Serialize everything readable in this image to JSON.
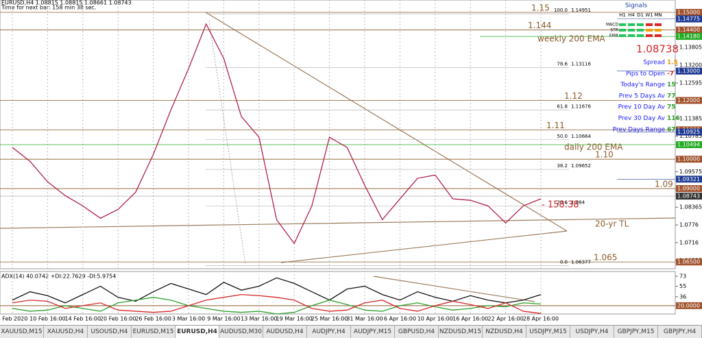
{
  "header": {
    "symbol_line": "EURUSD,H4  1.08815 1.08815 1.08661 1.08743",
    "timer": "Time for next bar: 158 min 38 sec."
  },
  "chart_data": [
    {
      "type": "line",
      "color": "#b0204a",
      "categories": [
        "4 Feb 2020",
        null,
        "10 Feb 16:00",
        null,
        "14 Feb 16:00",
        null,
        "20 Feb 16:00",
        null,
        "26 Feb 16:00",
        null,
        "3 Mar 16:00",
        null,
        "9 Mar 16:00",
        null,
        "13 Mar 16:00",
        null,
        "19 Mar 16:00",
        null,
        "25 Mar 16:00",
        null,
        "31 Mar 16:00",
        null,
        "6 Apr 16:00",
        null,
        "10 Apr 16:00",
        null,
        "16 Apr 16:00",
        null,
        "22 Apr 16:00",
        null,
        "28 Apr 16:00"
      ],
      "values": [
        1.104,
        1.0993,
        1.0923,
        1.0876,
        1.0841,
        1.0799,
        1.0829,
        1.0888,
        1.1016,
        1.1168,
        1.1308,
        1.146,
        1.1343,
        1.1145,
        1.1075,
        1.0794,
        1.0713,
        1.0841,
        1.1075,
        1.104,
        1.0911,
        1.0794,
        1.0865,
        1.0935,
        1.0946,
        1.0865,
        1.086,
        1.0841,
        1.0783,
        1.0841,
        1.0865
      ],
      "ylim": [
        1.0627,
        1.1542
      ],
      "yticks": [
        {
          "value": 1.13805,
          "label": "1.13805"
        },
        {
          "value": 1.132,
          "label": "1.13200"
        },
        {
          "value": 1.12595,
          "label": "1.12595"
        },
        {
          "value": 1.11385,
          "label": "1.11385"
        },
        {
          "value": 1.10785,
          "label": "1.10785"
        },
        {
          "value": 1.09575,
          "label": "1.09575"
        },
        1.0897,
        {
          "value": 1.08365,
          "label": "1.08365"
        },
        1.0776,
        1.0716,
        1.06555
      ],
      "levels": [
        {
          "value": 1.15,
          "label": "1.15",
          "axis_label": "1.15000"
        },
        {
          "value": 1.144,
          "label": "1.144",
          "axis_label": "1.14400"
        },
        {
          "value": 1.12,
          "label": "1.12",
          "axis_label": "1.12000"
        },
        {
          "value": 1.11,
          "label": "1.11",
          "axis_label": "1.11000"
        },
        {
          "value": 1.1,
          "label": "1.10",
          "axis_label": "1.10000"
        },
        {
          "value": 1.09,
          "label": "1.09",
          "axis_label": "1.09000"
        },
        {
          "value": 1.065,
          "label": "1.065",
          "axis_label": "1.06500"
        }
      ],
      "marked_prices": [
        {
          "value": 1.14775,
          "label": "1.14775"
        },
        {
          "value": 1.13,
          "label": "1.13000"
        },
        {
          "value": 1.10925,
          "label": "1.10925"
        },
        {
          "value": 1.09321,
          "label": "1.09321"
        }
      ],
      "emas": [
        {
          "text": "weekly 200 EMA",
          "value": 1.1418,
          "label": "1.14180"
        },
        {
          "text": "daily 200 EMA",
          "value": 1.10494,
          "label": "1.10494"
        }
      ],
      "current_price": {
        "value": 1.08743,
        "label": "1.08743"
      },
      "fibs": [
        {
          "level": "100.0",
          "price": 1.14951
        },
        {
          "level": "78.6",
          "price": 1.13116
        },
        {
          "level": "61.8",
          "price": 1.11676
        },
        {
          "level": "50.0",
          "price": 1.10664
        },
        {
          "level": "38.2",
          "price": 1.09652
        },
        {
          "level": "23.6",
          "price": 1.084
        },
        {
          "level": "0.0",
          "price": 1.06377
        }
      ],
      "annotations": {
        "countdown": "- 158:38",
        "trendline": "20-yr TL"
      }
    },
    {
      "type": "line",
      "title": "ADX(14) 40.0742 +DI:22.7629 -DI:5.9754",
      "series": [
        {
          "name": "ADX",
          "color": "#111111",
          "values": [
            30,
            45,
            38,
            25,
            40,
            55,
            35,
            28,
            45,
            60,
            50,
            40,
            62,
            48,
            55,
            70,
            60,
            45,
            30,
            50,
            55,
            40,
            30,
            45,
            35,
            28,
            38,
            30,
            25,
            30,
            40
          ]
        },
        {
          "name": "+DI",
          "color": "#2ca02c",
          "values": [
            15,
            10,
            12,
            20,
            15,
            10,
            25,
            30,
            35,
            30,
            20,
            15,
            10,
            8,
            10,
            5,
            8,
            20,
            30,
            22,
            12,
            10,
            20,
            25,
            18,
            12,
            15,
            20,
            18,
            25,
            23
          ]
        },
        {
          "name": "-DI",
          "color": "#d62728",
          "values": [
            25,
            30,
            28,
            15,
            20,
            25,
            12,
            10,
            8,
            10,
            20,
            30,
            35,
            40,
            38,
            35,
            30,
            15,
            10,
            12,
            25,
            30,
            15,
            10,
            20,
            28,
            22,
            15,
            25,
            10,
            6
          ]
        }
      ],
      "ylim": [
        5,
        79
      ],
      "yticks": [
        73,
        55,
        36
      ],
      "level": {
        "value": 20,
        "label": "20.0000"
      }
    }
  ],
  "signals": {
    "title": "Signals",
    "columns": [
      "H1",
      "H4",
      "D1",
      "W1",
      "MN"
    ],
    "rows": [
      {
        "name": "MACD",
        "colors": [
          "#22c55e",
          "#22c55e",
          "#22c55e",
          "#dc2626",
          "#dc2626"
        ]
      },
      {
        "name": "STR",
        "colors": [
          "#22c55e",
          "#22c55e",
          "#22c55e",
          "#f59e0b",
          "#f59e0b"
        ]
      },
      {
        "name": "EMA",
        "colors": [
          "#22c55e",
          "#22c55e",
          "#22c55e",
          "#dc2626",
          "#dc2626"
        ]
      }
    ],
    "bid": "1.08738",
    "stats": [
      {
        "label": "Spread",
        "value": 1.5,
        "color": "#e69500"
      },
      {
        "label": "Pips to Open",
        "value": -7,
        "color": "#d62728"
      },
      {
        "label": "Today's Range",
        "value": 15,
        "color": "#2a9d2a"
      },
      {
        "label": "Prev 5 Days Av",
        "value": 77,
        "color": "#2a9d2a"
      },
      {
        "label": "Prev 10 Day Av",
        "value": 75,
        "color": "#2a9d2a"
      },
      {
        "label": "Prev 30 Day Av",
        "value": 116,
        "color": "#2a9d2a"
      },
      {
        "label": "Prev Days Range",
        "value": 67,
        "color": "#2a9d2a"
      }
    ]
  },
  "tabs": [
    "XAUUSD,M15",
    "XAUUSD,H4",
    "USOUSD,H4",
    "EURUSD,M15",
    "EURUSD,H4",
    "AUDUSD,M30",
    "AUDUSD,H4",
    "AUDJPY,H4",
    "AUDJPY,M15",
    "GBPUSD,H4",
    "NZDUSD,M15",
    "NZDUSD,H4",
    "USDJPY,M15",
    "USDJPY,H4",
    "GBPJPY,M15",
    "GBPJPY,H4"
  ],
  "active_tab": "EURUSD,H4"
}
